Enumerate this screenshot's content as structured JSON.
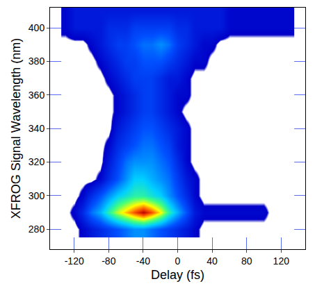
{
  "chart_data": {
    "type": "heatmap",
    "xlabel": "Delay (fs)",
    "ylabel": "XFROG Signal Wavelength (nm)",
    "x": [
      -130,
      -120,
      -110,
      -100,
      -90,
      -80,
      -70,
      -60,
      -50,
      -40,
      -30,
      -20,
      -10,
      0,
      10,
      20,
      30,
      40,
      50,
      60,
      70,
      80,
      90,
      100,
      110,
      120,
      130
    ],
    "y": [
      280,
      290,
      300,
      310,
      320,
      330,
      340,
      350,
      360,
      370,
      380,
      390,
      400,
      410
    ],
    "z": [
      [
        0,
        0,
        0.05,
        0.1,
        0.15,
        0.2,
        0.25,
        0.3,
        0.35,
        0.35,
        0.3,
        0.25,
        0.2,
        0.15,
        0.1,
        0.05,
        0,
        0,
        0,
        0,
        0,
        0,
        0,
        0,
        0,
        0,
        0
      ],
      [
        0,
        0.05,
        0.15,
        0.3,
        0.4,
        0.55,
        0.7,
        0.8,
        0.9,
        1,
        0.9,
        0.75,
        0.55,
        0.4,
        0.25,
        0.1,
        0.05,
        0.05,
        0.05,
        0.05,
        0.05,
        0.05,
        0.05,
        0.05,
        0,
        0,
        0
      ],
      [
        0,
        0,
        0.05,
        0.15,
        0.25,
        0.35,
        0.45,
        0.5,
        0.55,
        0.55,
        0.5,
        0.45,
        0.35,
        0.25,
        0.15,
        0.05,
        0,
        0,
        0,
        0,
        0,
        0,
        0,
        0,
        0,
        0,
        0
      ],
      [
        0,
        0,
        0,
        0,
        0.05,
        0.15,
        0.25,
        0.35,
        0.45,
        0.45,
        0.4,
        0.35,
        0.3,
        0.2,
        0.1,
        0.05,
        0,
        0,
        0,
        0,
        0,
        0,
        0,
        0,
        0,
        0,
        0
      ],
      [
        0,
        0,
        0,
        0,
        0,
        0.1,
        0.2,
        0.3,
        0.35,
        0.35,
        0.35,
        0.3,
        0.25,
        0.15,
        0.05,
        0,
        0,
        0,
        0,
        0,
        0,
        0,
        0,
        0,
        0,
        0,
        0
      ],
      [
        0,
        0,
        0,
        0,
        0,
        0.05,
        0.15,
        0.2,
        0.25,
        0.3,
        0.3,
        0.25,
        0.2,
        0.1,
        0.05,
        0,
        0,
        0,
        0,
        0,
        0,
        0,
        0,
        0,
        0,
        0,
        0
      ],
      [
        0,
        0,
        0,
        0,
        0,
        0,
        0.1,
        0.15,
        0.2,
        0.25,
        0.25,
        0.2,
        0.15,
        0.1,
        0.05,
        0,
        0,
        0,
        0,
        0,
        0,
        0,
        0,
        0,
        0,
        0,
        0
      ],
      [
        0,
        0,
        0,
        0,
        0,
        0,
        0.05,
        0.1,
        0.15,
        0.2,
        0.2,
        0.15,
        0.1,
        0.05,
        0,
        0,
        0,
        0,
        0,
        0,
        0,
        0,
        0,
        0,
        0,
        0,
        0
      ],
      [
        0,
        0,
        0,
        0,
        0,
        0,
        0.05,
        0.1,
        0.15,
        0.2,
        0.2,
        0.15,
        0.1,
        0.05,
        0.05,
        0,
        0,
        0,
        0,
        0,
        0,
        0,
        0,
        0,
        0,
        0,
        0
      ],
      [
        0,
        0,
        0,
        0,
        0,
        0.05,
        0.1,
        0.15,
        0.2,
        0.2,
        0.2,
        0.15,
        0.1,
        0.1,
        0.05,
        0,
        0,
        0,
        0,
        0,
        0,
        0,
        0,
        0,
        0,
        0,
        0
      ],
      [
        0,
        0,
        0,
        0,
        0.05,
        0.1,
        0.15,
        0.2,
        0.2,
        0.25,
        0.25,
        0.25,
        0.2,
        0.15,
        0.1,
        0.05,
        0.05,
        0,
        0,
        0,
        0,
        0,
        0,
        0,
        0,
        0,
        0
      ],
      [
        0,
        0,
        0,
        0.05,
        0.1,
        0.15,
        0.2,
        0.2,
        0.25,
        0.3,
        0.3,
        0.35,
        0.3,
        0.2,
        0.15,
        0.1,
        0.05,
        0.05,
        0,
        0,
        0,
        0,
        0,
        0,
        0,
        0,
        0
      ],
      [
        0.05,
        0.1,
        0.1,
        0.1,
        0.1,
        0.15,
        0.15,
        0.15,
        0.2,
        0.2,
        0.2,
        0.2,
        0.2,
        0.15,
        0.15,
        0.1,
        0.1,
        0.1,
        0.1,
        0.05,
        0.05,
        0.05,
        0.05,
        0.05,
        0.05,
        0.05,
        0.05
      ],
      [
        0.05,
        0.1,
        0.1,
        0.1,
        0.1,
        0.1,
        0.1,
        0.1,
        0.1,
        0.1,
        0.1,
        0.1,
        0.1,
        0.1,
        0.1,
        0.1,
        0.1,
        0.1,
        0.1,
        0.05,
        0.05,
        0.05,
        0.05,
        0.05,
        0.05,
        0.05,
        0.05
      ]
    ],
    "zlim": [
      0,
      1
    ],
    "xlim": [
      -148,
      148
    ],
    "ylim": [
      268,
      412
    ],
    "xticks": [
      -120,
      -80,
      -40,
      0,
      40,
      80,
      120
    ],
    "yticks": [
      280,
      300,
      320,
      340,
      360,
      380,
      400
    ],
    "grid": true
  }
}
